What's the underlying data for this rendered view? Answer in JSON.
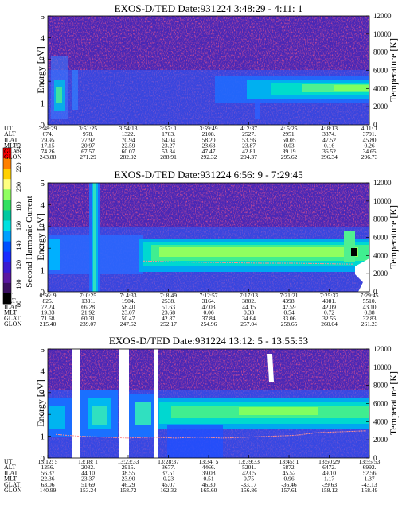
{
  "colorbar": {
    "label": "Second Harmonic Current",
    "ticks": [
      "240",
      "220",
      "200",
      "180",
      "160",
      "140",
      "120",
      "100",
      "80"
    ],
    "colors": [
      "#ff0000",
      "#ff8000",
      "#ffd000",
      "#ffff80",
      "#90ff60",
      "#30e060",
      "#00c8a0",
      "#00e0e0",
      "#00a0ff",
      "#0050ff",
      "#1a2cff",
      "#3a1ad0",
      "#5a18a0",
      "#3a1060",
      "#000000"
    ]
  },
  "chart_data": [
    {
      "type": "heatmap",
      "title": "EXOS-D/TED   Date:931224   3:48:29 - 4:11: 1",
      "ylabel": "Energy [eV]",
      "y2label": "Temperature [K]",
      "ylim": [
        0,
        5
      ],
      "y2lim": [
        0,
        12000
      ],
      "yticks": [
        "0",
        "1",
        "2",
        "3",
        "4",
        "5"
      ],
      "y2ticks": [
        "0",
        "2000",
        "4000",
        "6000",
        "8000",
        "10000",
        "12000"
      ],
      "ephemeris_labels": [
        "UT",
        "ALT",
        "ILAT",
        "MLT",
        "GLAT",
        "GLON"
      ],
      "columns": [
        [
          "3:48:29",
          "674.",
          "79.95",
          "17.15",
          "74.26",
          "243.88"
        ],
        [
          "3:51:25",
          "978.",
          "77.92",
          "20.97",
          "67.57",
          "271.29"
        ],
        [
          "3:54:13",
          "1322.",
          "70.94",
          "22.59",
          "60.07",
          "282.92"
        ],
        [
          "3:57: 1",
          "1703.",
          "64.04",
          "23.27",
          "53.34",
          "288.91"
        ],
        [
          "3:59:49",
          "2108.",
          "58.20",
          "23.63",
          "47.47",
          "292.32"
        ],
        [
          "4: 2:37",
          "2527.",
          "53.56",
          "23.87",
          "42.81",
          "294.37"
        ],
        [
          "4: 5:25",
          "2951.",
          "50.05",
          "0.03",
          "39.19",
          "295.62"
        ],
        [
          "4: 8:13",
          "3374.",
          "47.52",
          "0.16",
          "36.52",
          "296.34"
        ],
        [
          "4:11: 1",
          "3791.",
          "45.80",
          "0.26",
          "34.65",
          "296.73"
        ]
      ],
      "temperature_trace": false
    },
    {
      "type": "heatmap",
      "title": "EXOS-D/TED   Date:931224   6:56: 9 - 7:29:45",
      "ylabel": "Energy [eV]",
      "y2label": "Temperature [K]",
      "ylim": [
        0,
        5
      ],
      "y2lim": [
        0,
        12000
      ],
      "yticks": [
        "0",
        "1",
        "2",
        "3",
        "4",
        "5"
      ],
      "y2ticks": [
        "0",
        "2000",
        "4000",
        "6000",
        "8000",
        "10000",
        "12000"
      ],
      "ephemeris_labels": [
        "UT",
        "ALT",
        "ILAT",
        "MLT",
        "GLAT",
        "GLON"
      ],
      "columns": [
        [
          "6:56: 9",
          "825.",
          "72.24",
          "19.33",
          "71.68",
          "215.40"
        ],
        [
          "7: 0:25",
          "1331.",
          "66.28",
          "21.92",
          "60.31",
          "239.07"
        ],
        [
          "7: 4:33",
          "1904.",
          "58.40",
          "23.07",
          "50.47",
          "247.62"
        ],
        [
          "7: 8:49",
          "2538.",
          "51.63",
          "23.68",
          "42.87",
          "252.17"
        ],
        [
          "7:12:57",
          "3164.",
          "47.03",
          "0.06",
          "37.84",
          "254.96"
        ],
        [
          "7:17:13",
          "3802.",
          "44.15",
          "0.33",
          "34.64",
          "257.04"
        ],
        [
          "7:21:21",
          "4398.",
          "42.59",
          "0.54",
          "33.06",
          "258.65"
        ],
        [
          "7:25:37",
          "4981.",
          "42.09",
          "0.72",
          "32.55",
          "260.04"
        ],
        [
          "7:29:45",
          "5510.",
          "43.10",
          "0.88",
          "32.83",
          "261.23"
        ]
      ],
      "temperature_trace": true,
      "temperature_K": [
        3400,
        3300,
        3250,
        3200,
        3150,
        3150,
        3100,
        3050
      ]
    },
    {
      "type": "heatmap",
      "title": "EXOS-D/TED   Date:931224   13:12: 5 - 13:55:53",
      "ylabel": "Energy [eV]",
      "y2label": "Temperature [K]",
      "ylim": [
        0,
        5
      ],
      "y2lim": [
        0,
        12000
      ],
      "yticks": [
        "0",
        "1",
        "2",
        "3",
        "4",
        "5"
      ],
      "y2ticks": [
        "0",
        "2000",
        "4000",
        "6000",
        "8000",
        "10000",
        "12000"
      ],
      "ephemeris_labels": [
        "UT",
        "ALT",
        "ILAT",
        "MLT",
        "GLAT",
        "GLON"
      ],
      "columns": [
        [
          "13:12: 5",
          "1256.",
          "56.37",
          "22.36",
          "63.06",
          "140.99"
        ],
        [
          "13:18: 1",
          "2082.",
          "44.10",
          "23.37",
          "51.69",
          "153.24"
        ],
        [
          "13:23:33",
          "2915.",
          "38.55",
          "23.90",
          "46.29",
          "158.72"
        ],
        [
          "13:28:37",
          "3677.",
          "37.51",
          "0.23",
          "45.07",
          "162.32"
        ],
        [
          "13:34: 5",
          "4466.",
          "39.08",
          "0.51",
          "46.30",
          "165.60"
        ],
        [
          "13:39:33",
          "5201.",
          "42.05",
          "0.75",
          "-33.17",
          "156.86"
        ],
        [
          "13:45: 1",
          "5872.",
          "45.52",
          "0.96",
          "-36.46",
          "157.61"
        ],
        [
          "13:50:29",
          "6472.",
          "49.10",
          "1.17",
          "-39.63",
          "158.12"
        ],
        [
          "13:55:53",
          "6992.",
          "52.56",
          "1.37",
          "-43.13",
          "158.49"
        ]
      ],
      "temperature_trace": true,
      "temperature_K": [
        2600,
        2400,
        2300,
        2200,
        2300,
        2200,
        2300,
        2200,
        2300,
        2400,
        2500,
        2800,
        2900,
        3000
      ]
    }
  ]
}
